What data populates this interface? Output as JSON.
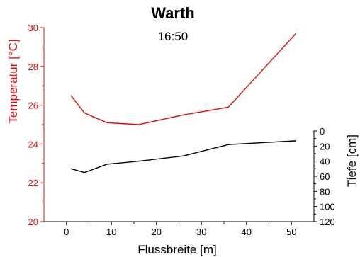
{
  "chart_data": {
    "type": "line",
    "title": "Warth",
    "subtitle": "16:50",
    "xlabel": "Flussbreite [m]",
    "ylabel_left": "Temperatur [°C]",
    "ylabel_right": "Tiefe [cm]",
    "xlim": [
      -5,
      55
    ],
    "xticks": [
      0,
      10,
      20,
      30,
      40,
      50
    ],
    "ylim_left": [
      20,
      30
    ],
    "yticks_left": [
      20,
      22,
      24,
      26,
      28,
      30
    ],
    "right_axis_reversed": true,
    "right_axis_range": [
      0,
      120
    ],
    "yticks_right": [
      0,
      20,
      40,
      60,
      80,
      100,
      120
    ],
    "colors": {
      "temperature": "#ff0000",
      "depth": "#000000",
      "left_axis": "#ff0000",
      "right_axis": "#000000"
    },
    "series": [
      {
        "axis": "left",
        "x": [
          1,
          4,
          9,
          16,
          26,
          36,
          51
        ],
        "values": [
          26.5,
          25.6,
          25.1,
          25.0,
          25.5,
          25.9,
          29.7
        ]
      },
      {
        "axis": "right",
        "x": [
          1,
          4,
          9,
          16,
          26,
          36,
          51
        ],
        "values": [
          50,
          55,
          44,
          40,
          33,
          18,
          13
        ]
      }
    ]
  }
}
